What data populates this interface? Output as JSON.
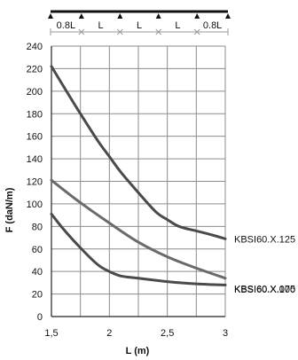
{
  "chart_data": {
    "type": "line",
    "xlabel": "L (m)",
    "ylabel": "F (daN/m)",
    "xlim": [
      1.5,
      3
    ],
    "ylim": [
      0,
      240
    ],
    "x_ticks": [
      1.5,
      2,
      2.5,
      3
    ],
    "x_tick_labels": [
      "1,5",
      "2",
      "2,5",
      "3"
    ],
    "x_grid": [
      1.5,
      1.75,
      2.0,
      2.25,
      2.5,
      2.75,
      3.0
    ],
    "y_ticks": [
      0,
      20,
      40,
      60,
      80,
      100,
      120,
      140,
      160,
      180,
      200,
      220,
      240
    ],
    "y_tick_labels": [
      "0",
      "20",
      "40",
      "60",
      "80",
      "100",
      "120",
      "140",
      "160",
      "180",
      "200",
      "220",
      "240"
    ],
    "grid": true,
    "span_diagram": {
      "labels": [
        "0.8L",
        "L",
        "L",
        "L",
        "0.8L"
      ],
      "weights": [
        0.8,
        1,
        1,
        1,
        0.8
      ]
    },
    "series": [
      {
        "name": "KBSI60.X.125",
        "color": "#4a4a4a",
        "x": [
          1.5,
          1.6,
          1.75,
          1.9,
          2.0,
          2.1,
          2.25,
          2.4,
          2.5,
          2.6,
          2.75,
          2.9,
          3.0
        ],
        "y": [
          222,
          205,
          180,
          156,
          142,
          128,
          110,
          93,
          86,
          80,
          76,
          72,
          69
        ]
      },
      {
        "name": "KBSI60.X.100",
        "color": "#6a6a6a",
        "x": [
          1.5,
          1.75,
          2.0,
          2.25,
          2.5,
          2.75,
          3.0
        ],
        "y": [
          121,
          101,
          83,
          66,
          53,
          43,
          34
        ]
      },
      {
        "name": "KBSI60.X.075",
        "color": "#4a4a4a",
        "x": [
          1.5,
          1.6,
          1.75,
          1.9,
          2.0,
          2.1,
          2.25,
          2.5,
          2.75,
          3.0
        ],
        "y": [
          91,
          78,
          61,
          46,
          40,
          36,
          34,
          31,
          29,
          28
        ]
      }
    ]
  }
}
